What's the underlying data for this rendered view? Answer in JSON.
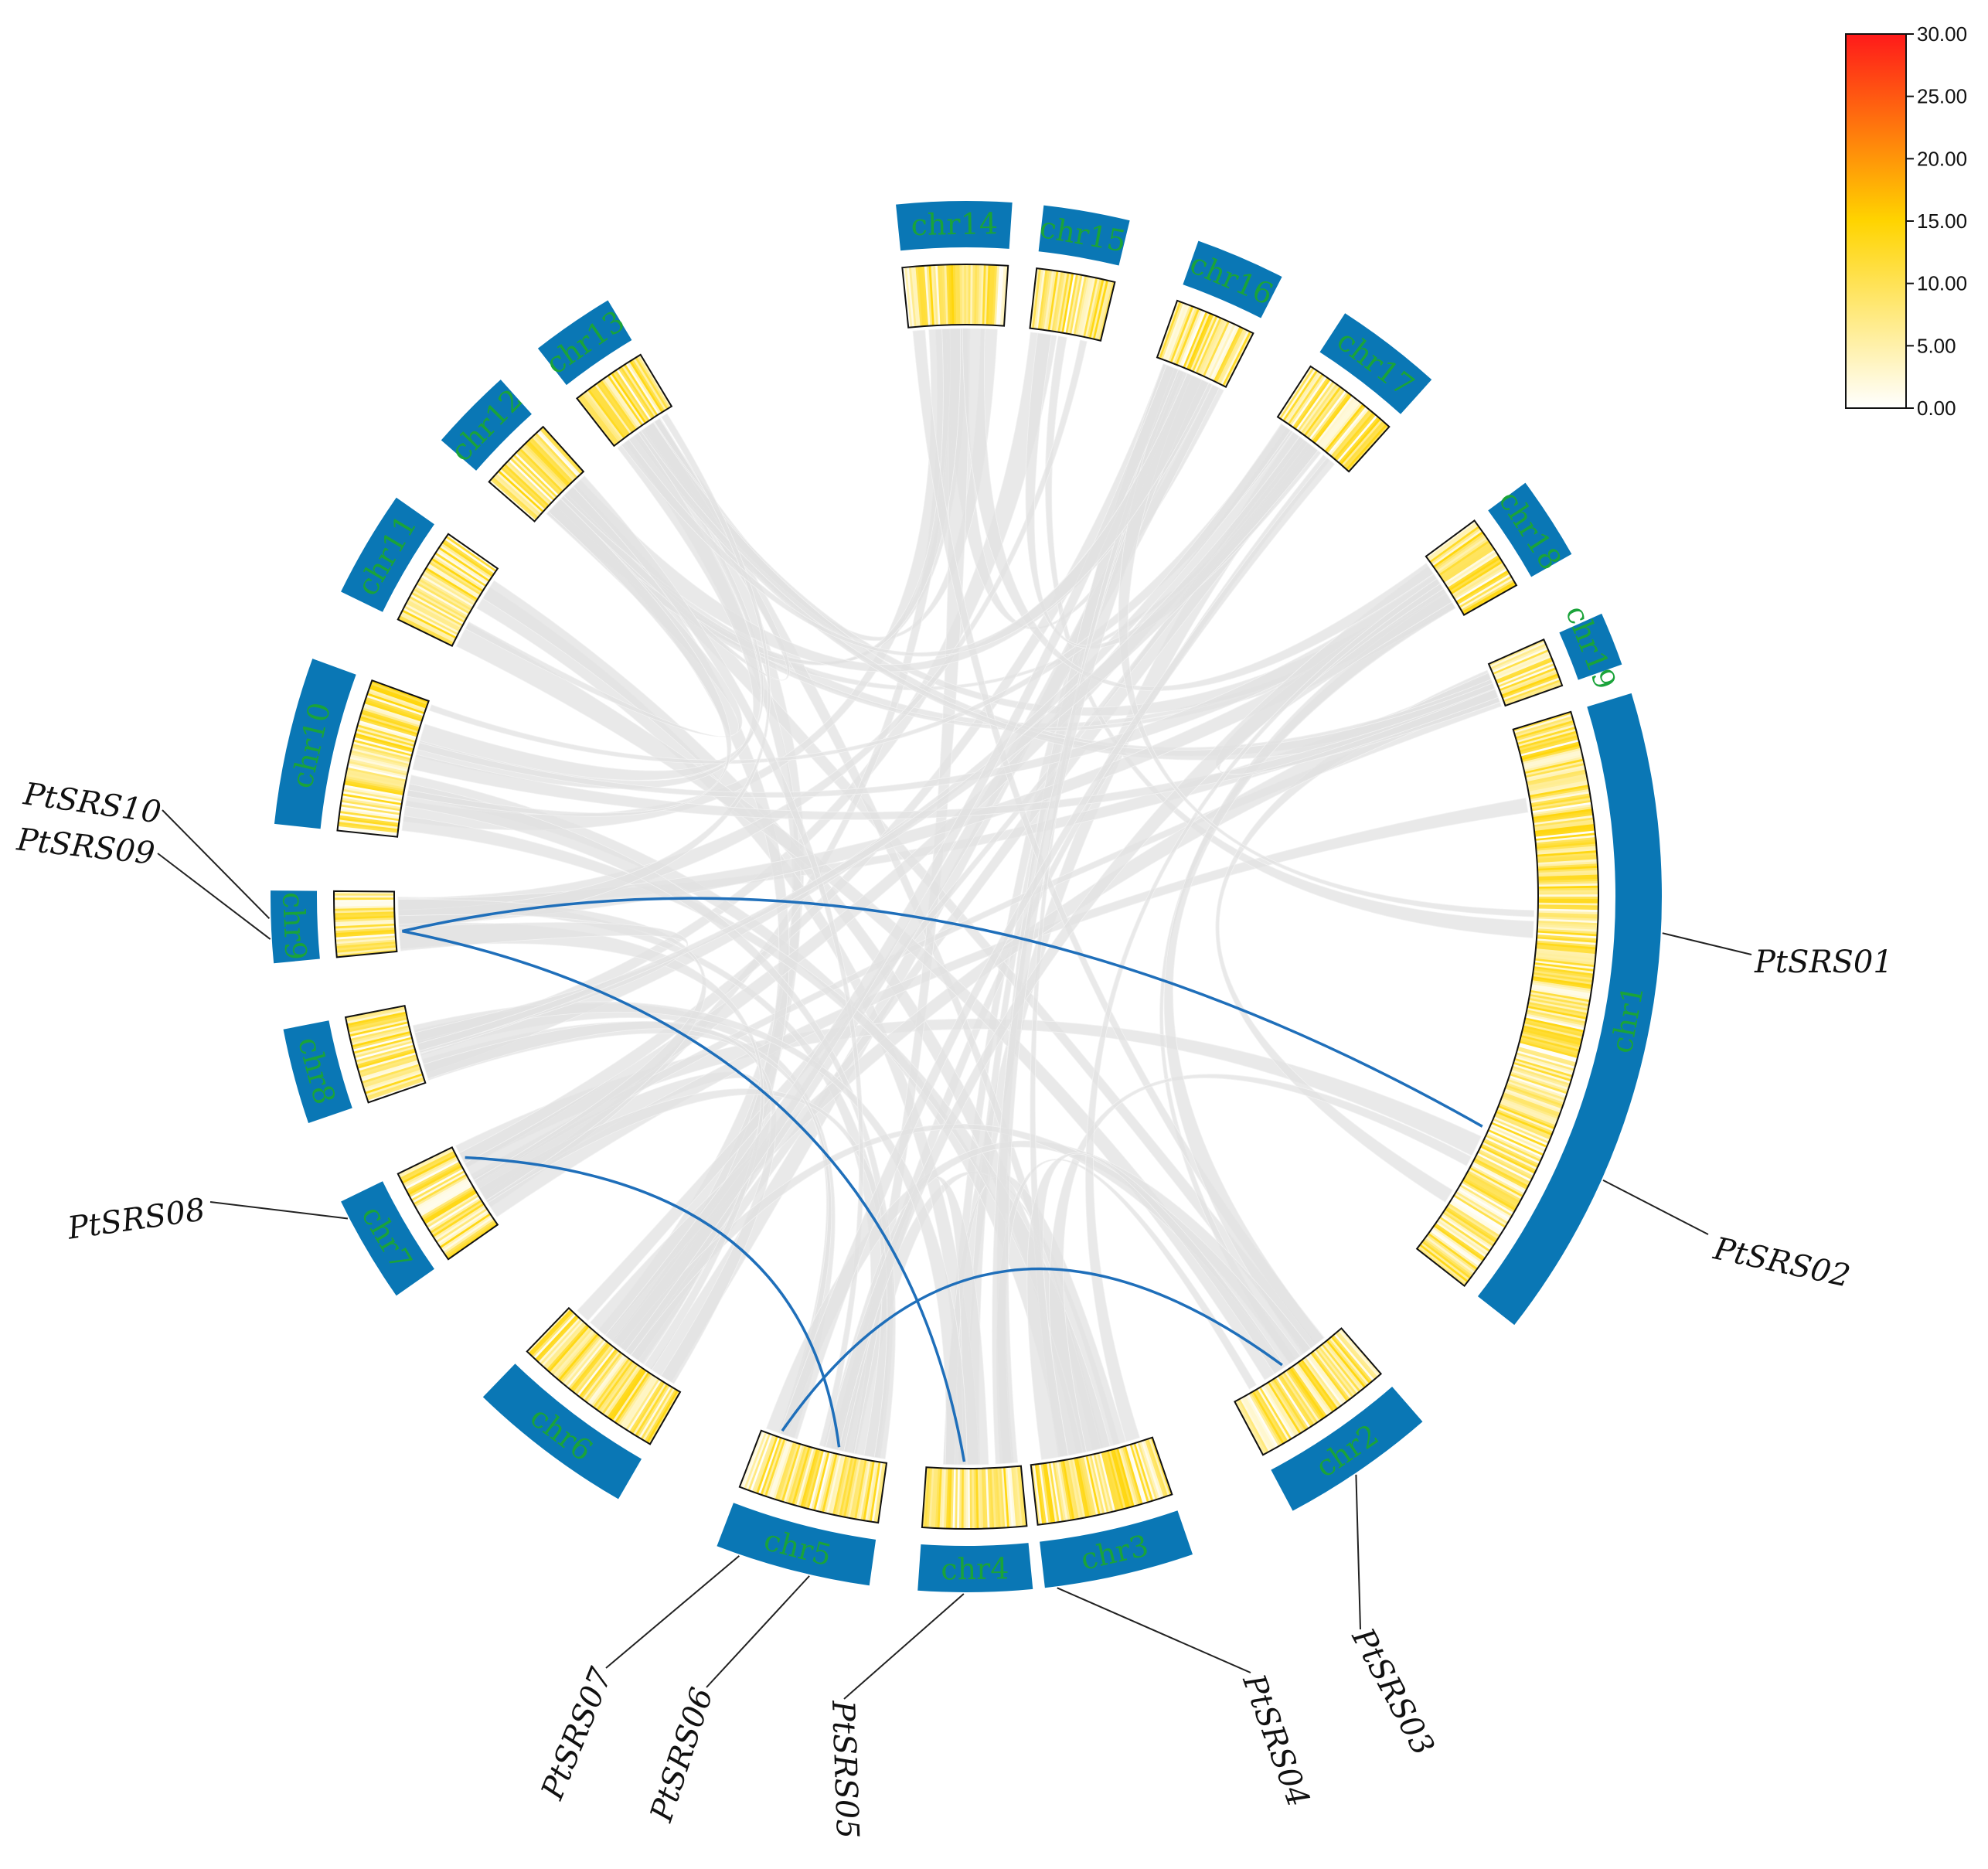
{
  "figure": {
    "type": "circos",
    "colors": {
      "ideogram": "#0a77b5",
      "chr_label": "#1aa33a",
      "link_background": "#e2e2e2",
      "link_highlight": "#1f6fba",
      "heat_low": "#ffffff",
      "heat_mid": "#ffd400",
      "heat_high": "#ff1a1a"
    },
    "legend": {
      "min": 0,
      "max": 30,
      "ticks": [
        "30.00",
        "25.00",
        "20.00",
        "15.00",
        "10.00",
        "5.00",
        "0.00"
      ]
    },
    "chromosomes": [
      {
        "name": "chr1"
      },
      {
        "name": "chr2"
      },
      {
        "name": "chr3"
      },
      {
        "name": "chr4"
      },
      {
        "name": "chr5"
      },
      {
        "name": "chr6"
      },
      {
        "name": "chr7"
      },
      {
        "name": "chr8"
      },
      {
        "name": "chr9"
      },
      {
        "name": "chr10"
      },
      {
        "name": "chr11"
      },
      {
        "name": "chr12"
      },
      {
        "name": "chr13"
      },
      {
        "name": "chr14"
      },
      {
        "name": "chr15"
      },
      {
        "name": "chr16"
      },
      {
        "name": "chr17"
      },
      {
        "name": "chr18"
      },
      {
        "name": "chr19"
      }
    ],
    "genes": [
      {
        "name": "PtSRS01",
        "chr": "chr1"
      },
      {
        "name": "PtSRS02",
        "chr": "chr1"
      },
      {
        "name": "PtSRS03",
        "chr": "chr2"
      },
      {
        "name": "PtSRS04",
        "chr": "chr3"
      },
      {
        "name": "PtSRS05",
        "chr": "chr4"
      },
      {
        "name": "PtSRS06",
        "chr": "chr5"
      },
      {
        "name": "PtSRS07",
        "chr": "chr5"
      },
      {
        "name": "PtSRS08",
        "chr": "chr7"
      },
      {
        "name": "PtSRS09",
        "chr": "chr9"
      },
      {
        "name": "PtSRS10",
        "chr": "chr9"
      }
    ],
    "highlight_links": [
      [
        "PtSRS09",
        "PtSRS02"
      ],
      [
        "PtSRS09",
        "PtSRS05"
      ],
      [
        "PtSRS08",
        "PtSRS06"
      ],
      [
        "PtSRS07",
        "PtSRS03"
      ]
    ]
  }
}
